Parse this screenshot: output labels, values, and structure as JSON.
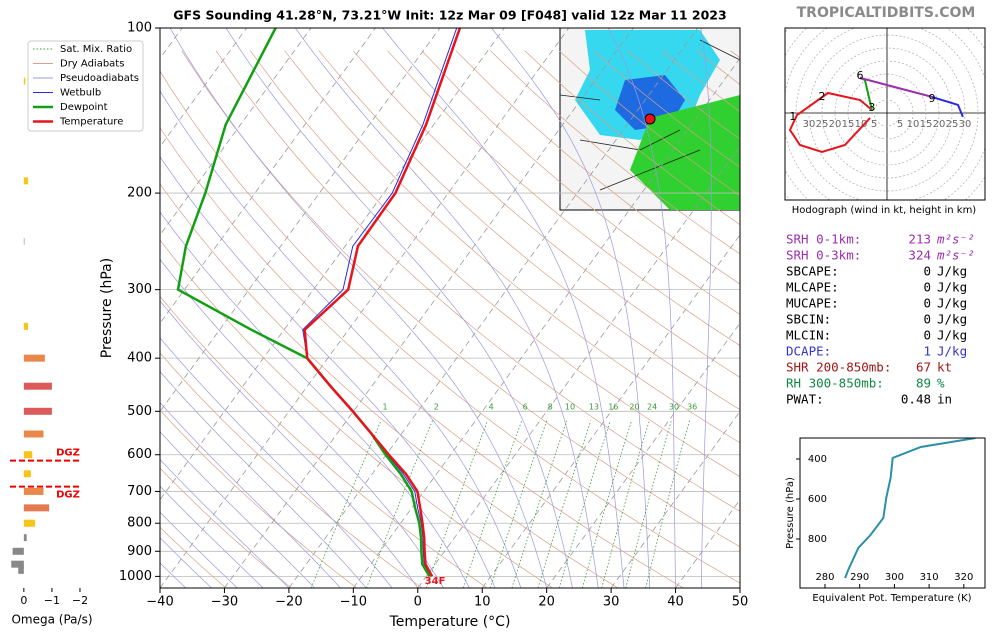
{
  "site": "TROPICALTIDBITS.COM",
  "chart_data": [
    {
      "type": "skewt",
      "title": "GFS Sounding 41.28°N, 73.21°W Init: 12z Mar 09 [F048] valid 12z Mar 11 2023",
      "xlabel": "Temperature (°C)",
      "ylabel": "Pressure (hPa)",
      "log_y": true,
      "pressure": [
        1000,
        950,
        900,
        850,
        800,
        750,
        700,
        650,
        600,
        550,
        500,
        450,
        400,
        355,
        300,
        250,
        200,
        150,
        100
      ],
      "series": [
        {
          "name": "Temperature",
          "color": "#e8141c",
          "values": [
            0.9,
            -1.5,
            -3.1,
            -4.7,
            -6.6,
            -8.7,
            -11.0,
            -14.8,
            -19.6,
            -24.6,
            -30.1,
            -36.4,
            -43.2,
            -46.8,
            -44.6,
            -48.0,
            -48.2,
            -51.2,
            -56.9
          ]
        },
        {
          "name": "Dewpoint",
          "color": "#12a012",
          "values": [
            0.5,
            -2.0,
            -3.6,
            -5.2,
            -7.1,
            -9.5,
            -11.9,
            -15.6,
            -20.1,
            -24.6,
            -30.1,
            -36.4,
            -43.2,
            -55.1,
            -71.0,
            -74.7,
            -77.7,
            -82.3,
            -85.5
          ]
        },
        {
          "name": "Wetbulb",
          "color": "#2a2ae0",
          "values": [
            0.7,
            -1.7,
            -3.3,
            -4.9,
            -6.8,
            -9.1,
            -11.4,
            -15.2,
            -19.8,
            -24.6,
            -30.1,
            -36.4,
            -43.2,
            -47.1,
            -45.4,
            -48.8,
            -48.7,
            -51.7,
            -57.4
          ]
        }
      ],
      "background_lines": [
        {
          "name": "Sat. Mix. Ratio",
          "color": "#3a9a3a"
        },
        {
          "name": "Dry Adiabats",
          "color": "#d9a088"
        },
        {
          "name": "Pseudoadiabats",
          "color": "#9a9ae0"
        }
      ],
      "mixing_ratio_labels": [
        1,
        2,
        4,
        6,
        8,
        10,
        13,
        16,
        20,
        24,
        30,
        36
      ],
      "surface_label": "34F",
      "xlim": [
        -40,
        50
      ],
      "ylim": [
        1050,
        100
      ],
      "xticks": [
        {
          "value": -40,
          "label": "−40"
        },
        {
          "value": -30,
          "label": "−30"
        },
        {
          "value": -20,
          "label": "−20"
        },
        {
          "value": -10,
          "label": "−10"
        },
        0,
        10,
        20,
        30,
        40,
        50
      ],
      "yticks": [
        100,
        200,
        300,
        400,
        500,
        600,
        700,
        800,
        900,
        1000
      ]
    },
    {
      "type": "bar",
      "xlabel": "Omega (Pa/s)",
      "pressure": [
        125,
        190,
        245,
        350,
        400,
        450,
        500,
        550,
        600,
        650,
        700,
        750,
        800,
        850,
        900,
        950,
        975
      ],
      "values": [
        -0.05,
        -0.15,
        -0.02,
        -0.15,
        -0.75,
        -1.0,
        -1.0,
        -0.7,
        -0.3,
        -0.25,
        -0.7,
        -0.9,
        -0.4,
        -0.1,
        0.4,
        0.45,
        0.2
      ],
      "colors": [
        "#f5c518",
        "#f5c518",
        "#888888",
        "#f5c518",
        "#e8884a",
        "#dd5a5a",
        "#dd5a5a",
        "#e8884a",
        "#f5c518",
        "#f5c518",
        "#e8884a",
        "#e47a50",
        "#f5c518",
        "#888888",
        "#888888",
        "#888888",
        "#888888"
      ],
      "dgz": [
        {
          "pressure": 615,
          "label": "DGZ"
        },
        {
          "pressure": 686,
          "label": "DGZ"
        }
      ],
      "xlim": [
        0.85,
        -2.5
      ],
      "xticks": [
        0,
        {
          "value": -1,
          "label": "−1"
        },
        {
          "value": -2,
          "label": "−2"
        }
      ]
    },
    {
      "type": "hodograph",
      "caption": "Hodograph (wind in kt, height in km)",
      "ring_ticks": [
        5,
        10,
        15,
        20,
        25,
        30
      ],
      "segments": [
        {
          "color": "#e8141c",
          "u": [
            -6.5,
            -16.2,
            -25.0,
            -33.5,
            -37.3,
            -34.6,
            -22.7,
            -10.4,
            -5.8
          ],
          "v": [
            -1.9,
            -12.3,
            -15.0,
            -12.3,
            -6.5,
            -0.8,
            7.7,
            5.0,
            1.2
          ]
        },
        {
          "color": "#12a012",
          "u": [
            -5.8,
            -8.5,
            -10.4
          ],
          "v": [
            1.2,
            12.7,
            13.5
          ]
        },
        {
          "color": "#9b2fae",
          "u": [
            -10.4,
            17.3
          ],
          "v": [
            13.5,
            6.2
          ]
        },
        {
          "color": "#2a2ae0",
          "u": [
            17.3,
            27.3,
            29.2
          ],
          "v": [
            6.2,
            3.1,
            -1.5
          ]
        }
      ],
      "markers": [
        {
          "label": "1",
          "u": -36.2,
          "v": -1.5
        },
        {
          "label": "2",
          "u": -25.0,
          "v": 6.2
        },
        {
          "label": "3",
          "u": -5.8,
          "v": 1.9
        },
        {
          "label": "6",
          "u": -10.4,
          "v": 14.2
        },
        {
          "label": "9",
          "u": 17.3,
          "v": 5.4
        }
      ]
    },
    {
      "type": "line",
      "xlabel": "Equivalent Pot. Temperature (K)",
      "ylabel": "Pressure (hPa)",
      "color": "#2a8fa8",
      "x": [
        285.8,
        286.7,
        289.6,
        293.1,
        296.8,
        297.7,
        298.9,
        299.5,
        307.6,
        323.4
      ],
      "values": [
        995,
        955,
        845,
        780,
        695,
        590,
        495,
        395,
        340,
        295
      ],
      "xlim": [
        272.8,
        326.1
      ],
      "ylim": [
        1045,
        295
      ],
      "xticks": [
        280,
        290,
        300,
        310,
        320
      ],
      "yticks": [
        400,
        600,
        800
      ]
    }
  ],
  "stats": [
    {
      "label": "SRH 0-1km:",
      "value": 213,
      "unit": "m²s⁻²",
      "color": "#9b2fae"
    },
    {
      "label": "SRH 0-3km:",
      "value": 324,
      "unit": "m²s⁻²",
      "color": "#9b2fae"
    },
    {
      "label": "SBCAPE:",
      "value": 0,
      "unit": "J/kg",
      "color": "#000000"
    },
    {
      "label": "MLCAPE:",
      "value": 0,
      "unit": "J/kg",
      "color": "#000000"
    },
    {
      "label": "MUCAPE:",
      "value": 0,
      "unit": "J/kg",
      "color": "#000000"
    },
    {
      "label": "SBCIN:",
      "value": 0,
      "unit": "J/kg",
      "color": "#000000"
    },
    {
      "label": "MLCIN:",
      "value": 0,
      "unit": "J/kg",
      "color": "#000000"
    },
    {
      "label": "DCAPE:",
      "value": 1,
      "unit": "J/kg",
      "color": "#3333cc"
    },
    {
      "label": "SHR 200-850mb:",
      "value": 67,
      "unit": "kt",
      "color": "#a01818"
    },
    {
      "label": "RH 300-850mb:",
      "value": 89,
      "unit": "%",
      "color": "#118844"
    },
    {
      "label": "PWAT:",
      "value": 0.48,
      "unit": "in",
      "color": "#000000"
    }
  ]
}
